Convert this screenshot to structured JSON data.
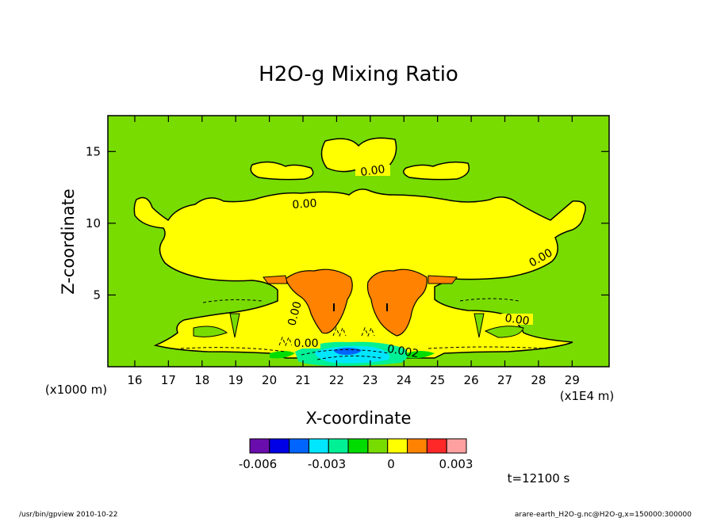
{
  "chart_data": {
    "type": "heatmap",
    "title": "H2O-g Mixing Ratio",
    "xlabel": "X-coordinate",
    "ylabel": "Z-coordinate",
    "x_units_left": "(x1000 m)",
    "x_units_right": "(x1E4 m)",
    "xlim": [
      15.2,
      30.1
    ],
    "ylim": [
      0,
      17.5
    ],
    "x_ticks": [
      "16",
      "17",
      "18",
      "19",
      "20",
      "21",
      "22",
      "23",
      "24",
      "25",
      "26",
      "27",
      "28",
      "29"
    ],
    "y_ticks": [
      "5",
      "10",
      "15"
    ],
    "contour_labels": [
      "0.00",
      "0.00",
      "0.00",
      "0.00",
      "0.00",
      "0.002"
    ],
    "colorbar": {
      "colors": [
        "#6a0dad",
        "#0000e6",
        "#0064ff",
        "#00e6ff",
        "#00f096",
        "#00dc00",
        "#78dc00",
        "#ffff00",
        "#ff8200",
        "#ff2828",
        "#ffa0a0"
      ],
      "tick_labels": [
        "-0.006",
        "-0.003",
        "0",
        "0.003"
      ]
    },
    "time_label": "t=12100 s",
    "background_color": "#78dc00"
  },
  "footer": {
    "left": "/usr/bin/gpview   2010-10-22",
    "right": "arare-earth_H2O-g.nc@H2O-g,x=150000:300000"
  }
}
